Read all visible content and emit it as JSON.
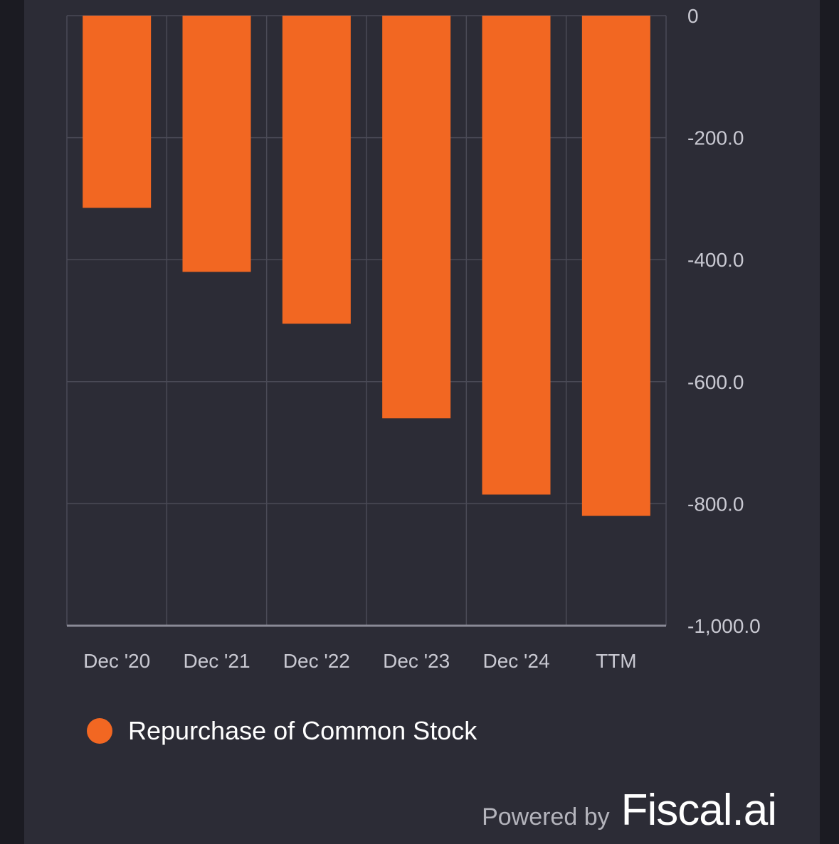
{
  "chart_data": {
    "type": "bar",
    "categories": [
      "Dec '20",
      "Dec '21",
      "Dec '22",
      "Dec '23",
      "Dec '24",
      "TTM"
    ],
    "series": [
      {
        "name": "Repurchase of Common Stock",
        "values": [
          -315,
          -420,
          -505,
          -660,
          -785,
          -820
        ],
        "color": "#f26722"
      }
    ],
    "yticks": [
      0,
      -200,
      -400,
      -600,
      -800,
      -1000
    ],
    "ytick_labels": [
      "0",
      "-200.0",
      "-400.0",
      "-600.0",
      "-800.0",
      "-1,000.0"
    ],
    "ylim": [
      -1000,
      0
    ],
    "y_axis_side": "right",
    "grid": true,
    "legend_position": "bottom-left",
    "title": "",
    "xlabel": "",
    "ylabel": ""
  },
  "colors": {
    "background": "#2c2c36",
    "outer_background": "#1b1b22",
    "grid": "#4a4a56",
    "axis": "#8a8a96",
    "bar": "#f26722"
  },
  "legend": {
    "label": "Repurchase of Common Stock",
    "color": "#f26722"
  },
  "branding": {
    "prefix": "Powered by",
    "name": "Fiscal.ai"
  }
}
